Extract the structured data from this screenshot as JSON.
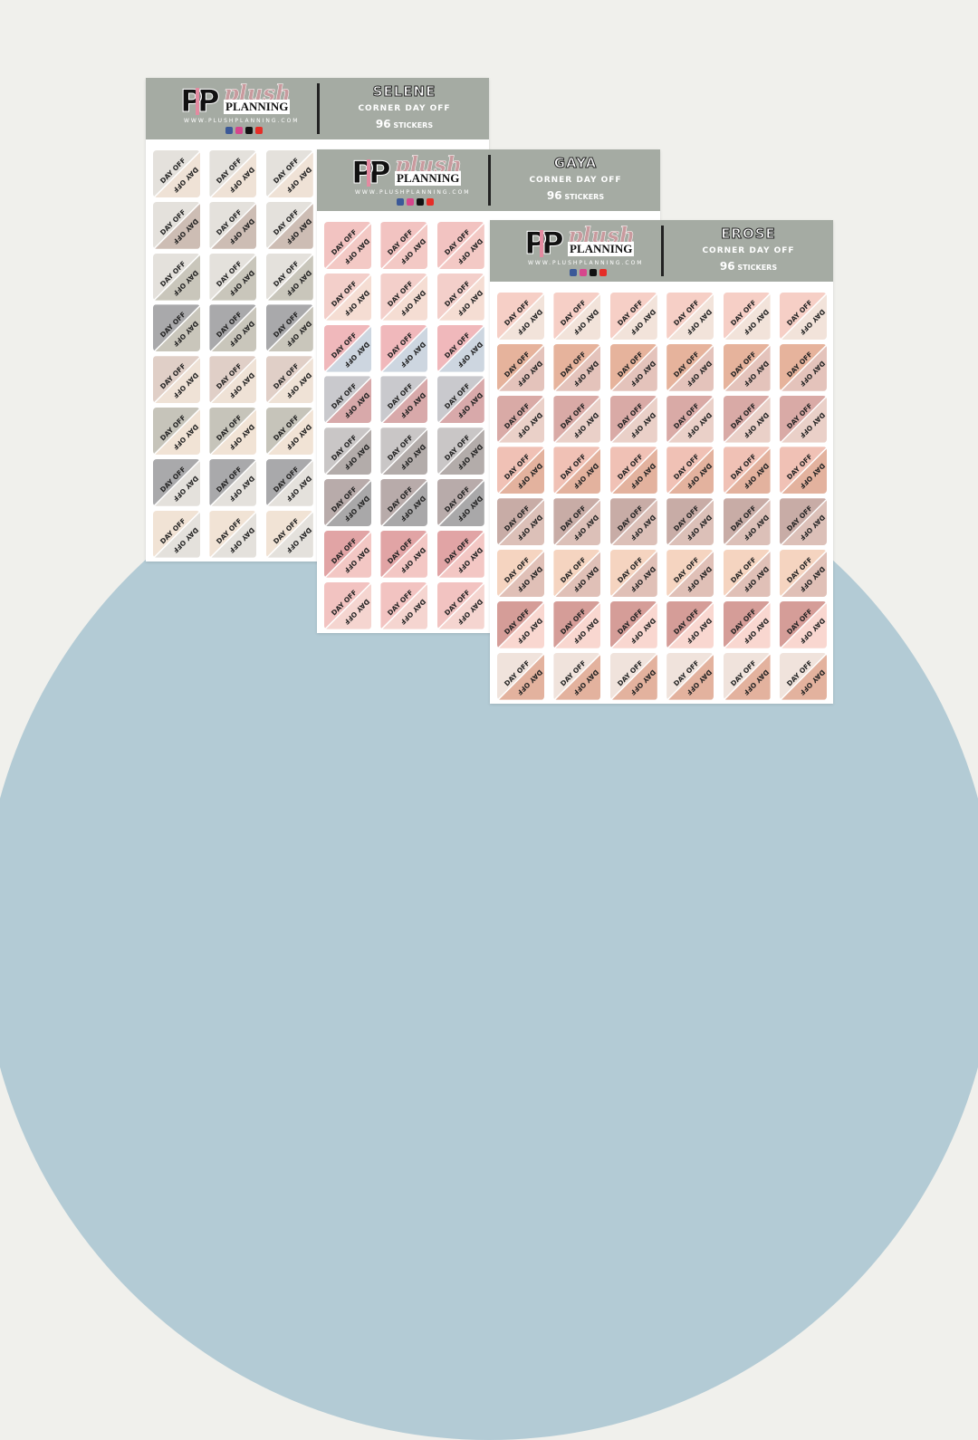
{
  "colors": {
    "background": "#f0f0ec",
    "arc": "#b3cbd5",
    "header": "#a5aba3",
    "pink": "#e38aa0",
    "social": [
      "#3b5998",
      "#d6468c",
      "#111111",
      "#e52d27"
    ]
  },
  "brand": {
    "mark": "PP",
    "name_script": "plush",
    "name_caps": "PLANNING",
    "website": "WWW.PLUSHPLANNING.COM"
  },
  "sticker_label": "DAY OFF",
  "sheets": [
    {
      "title": "SELENE",
      "subtitle": "CORNER DAY OFF",
      "count": "96",
      "count_label": "STICKERS",
      "visible_columns": 3,
      "rows": [
        [
          "#e4e1dc",
          "#efe2d6"
        ],
        [
          "#e4e1dc",
          "#cdbdb4"
        ],
        [
          "#e4e1dc",
          "#c9c6bb"
        ],
        [
          "#a9a9ab",
          "#c9c6bb"
        ],
        [
          "#e0cfc7",
          "#efe2d6"
        ],
        [
          "#c6c4ba",
          "#f1e3d5"
        ],
        [
          "#a9a9ab",
          "#e4e1dc"
        ],
        [
          "#f1e3d5",
          "#e4e1dc"
        ]
      ]
    },
    {
      "title": "GAYA",
      "subtitle": "CORNER DAY OFF",
      "count": "96",
      "count_label": "STICKERS",
      "visible_columns": 3,
      "rows": [
        [
          "#f2c3c1",
          "#f3c9c5"
        ],
        [
          "#f3cfca",
          "#f5ddd3"
        ],
        [
          "#f0b8bb",
          "#cdd6e0"
        ],
        [
          "#c9c9cd",
          "#d8a9aa"
        ],
        [
          "#c9c6c6",
          "#b3acaa"
        ],
        [
          "#b8abaa",
          "#a9a8a9"
        ],
        [
          "#e1a4a5",
          "#f3c7c4"
        ],
        [
          "#f2c3c1",
          "#f5d5d0"
        ]
      ]
    },
    {
      "title": "EROSE",
      "subtitle": "CORNER DAY OFF",
      "count": "96",
      "count_label": "STICKERS",
      "visible_columns": 6,
      "rows": [
        [
          "#f6cfc6",
          "#f2e3da"
        ],
        [
          "#e6b39c",
          "#e4c3bb"
        ],
        [
          "#d9aaa6",
          "#ead0c8"
        ],
        [
          "#f0c1b5",
          "#e3b29e"
        ],
        [
          "#c8aca6",
          "#dcc0b8"
        ],
        [
          "#f5d4c0",
          "#e0c0b7"
        ],
        [
          "#d59d98",
          "#f9d7d0"
        ],
        [
          "#f0e3dc",
          "#e3b29e"
        ]
      ]
    }
  ]
}
